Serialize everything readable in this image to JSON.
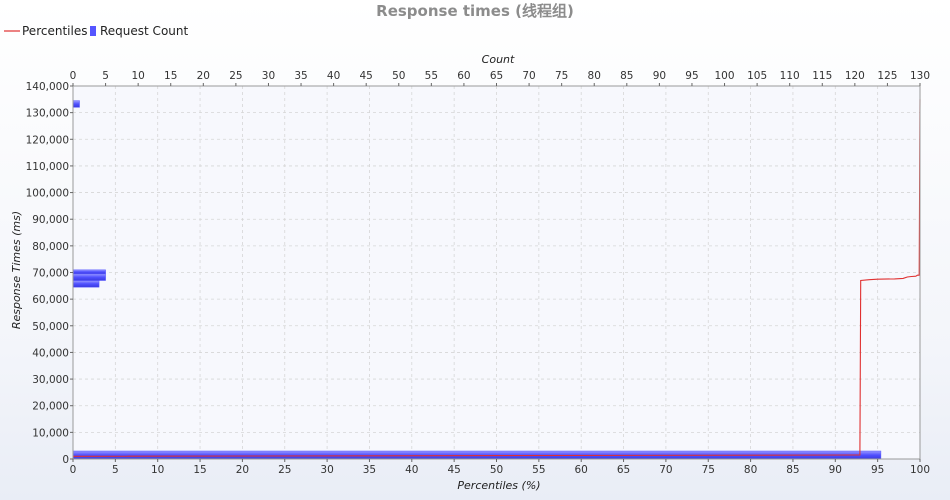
{
  "chart_data": {
    "type": "bar",
    "title": "Response times (线程组)",
    "legend": {
      "placement": "top-left",
      "items": [
        {
          "name": "Percentiles",
          "color": "#e03030",
          "marker": "line"
        },
        {
          "name": "Request Count",
          "color": "#5555ff",
          "marker": "square"
        }
      ]
    },
    "x_bottom": {
      "label": "Percentiles (%)",
      "range": [
        0,
        100
      ],
      "ticks": [
        0,
        5,
        10,
        15,
        20,
        25,
        30,
        35,
        40,
        45,
        50,
        55,
        60,
        65,
        70,
        75,
        80,
        85,
        90,
        95,
        100
      ]
    },
    "x_top": {
      "label": "Count",
      "range": [
        0,
        130
      ],
      "ticks": [
        0,
        5,
        10,
        15,
        20,
        25,
        30,
        35,
        40,
        45,
        50,
        55,
        60,
        65,
        70,
        75,
        80,
        85,
        90,
        95,
        100,
        105,
        110,
        115,
        120,
        125,
        130
      ]
    },
    "y": {
      "label": "Response Times (ms)",
      "range": [
        0,
        140000
      ],
      "ticks": [
        0,
        10000,
        20000,
        30000,
        40000,
        50000,
        60000,
        70000,
        80000,
        90000,
        100000,
        110000,
        120000,
        130000,
        140000
      ],
      "tick_labels": [
        "0",
        "10,000",
        "20,000",
        "30,000",
        "40,000",
        "50,000",
        "60,000",
        "70,000",
        "80,000",
        "90,000",
        "100,000",
        "110,000",
        "120,000",
        "130,000",
        "140,000"
      ]
    },
    "grid": true,
    "series": [
      {
        "name": "Percentiles",
        "type": "line",
        "color": "#e03030",
        "x": [
          0,
          92.5,
          92.9,
          93.0,
          94.0,
          95.0,
          97.0,
          98.0,
          98.5,
          99.0,
          99.5,
          99.7,
          99.9,
          100
        ],
        "y": [
          1000,
          1500,
          1500,
          67000,
          67300,
          67500,
          67600,
          67800,
          68300,
          68500,
          68600,
          69000,
          69000,
          135000
        ]
      },
      {
        "name": "Request Count",
        "type": "horizontal-bar",
        "color": "#5555ff",
        "bins": [
          {
            "y0": 0,
            "y1": 3000,
            "count": 124
          },
          {
            "y0": 64500,
            "y1": 67000,
            "count": 4
          },
          {
            "y0": 67000,
            "y1": 69500,
            "count": 5
          },
          {
            "y0": 69500,
            "y1": 71000,
            "count": 5
          },
          {
            "y0": 132000,
            "y1": 134500,
            "count": 1
          }
        ]
      }
    ]
  }
}
